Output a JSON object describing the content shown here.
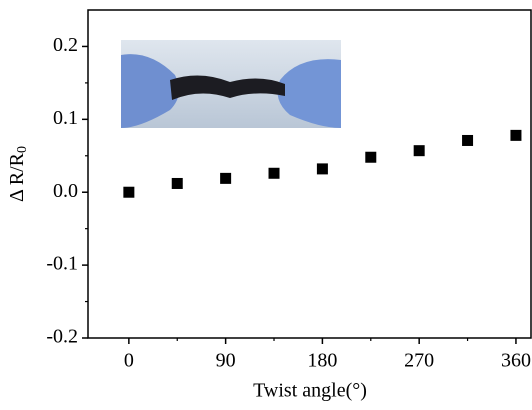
{
  "chart_data": {
    "type": "scatter",
    "xlabel": "Twist angle(°)",
    "ylabel": {
      "main": "Δ R/R",
      "sub": "0"
    },
    "x": [
      0,
      45,
      90,
      135,
      180,
      225,
      270,
      315,
      360
    ],
    "values": [
      0.0,
      0.012,
      0.019,
      0.026,
      0.032,
      0.048,
      0.057,
      0.071,
      0.078
    ],
    "color": "#000000",
    "xlim": [
      -38,
      374
    ],
    "ylim": [
      -0.2,
      0.25
    ],
    "xticks": [
      0,
      90,
      180,
      270,
      360
    ],
    "xminorticks": [
      45,
      135,
      225,
      315
    ],
    "yticks": [
      -0.2,
      -0.1,
      {
        "value": 0,
        "label": "0.0"
      },
      0.1,
      0.2
    ],
    "yminorticks": [
      -0.15,
      -0.05,
      0.05,
      0.15
    ]
  }
}
